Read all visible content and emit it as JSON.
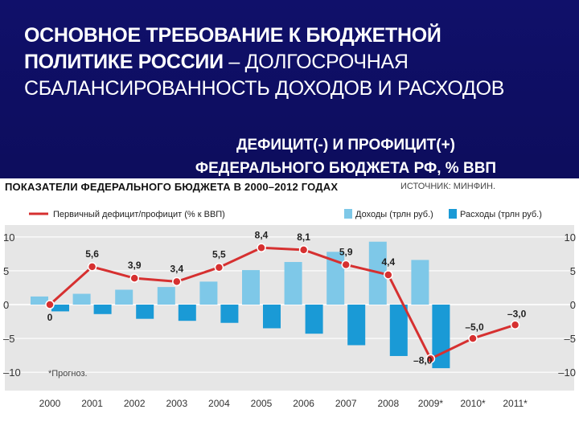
{
  "slide": {
    "title_bold": "ОСНОВНОЕ ТРЕБОВАНИЕ К БЮДЖЕТНОЙ ПОЛИТИКЕ РОССИИ",
    "title_rest": " – ДОЛГОСРОЧНАЯ СБАЛАНСИРОВАННОСТЬ ДОХОДОВ И РАСХОДОВ",
    "subtitle_line1": "ДЕФИЦИТ(-) И ПРОФИЦИТ(+)",
    "subtitle_line2": "ФЕДЕРАЛЬНОГО БЮДЖЕТА РФ, % ВВП"
  },
  "panel": {
    "section_title": "ПОКАЗАТЕЛИ ФЕДЕРАЛЬНОГО БЮДЖЕТА В 2000–2012 ГОДАХ",
    "source": "ИСТОЧНИК: МИНФИН.",
    "footnote": "*Прогноз."
  },
  "chart_data": {
    "type": "bar",
    "categories": [
      "2000",
      "2001",
      "2002",
      "2003",
      "2004",
      "2005",
      "2006",
      "2007",
      "2008",
      "2009*",
      "2010*",
      "2011*"
    ],
    "series": [
      {
        "name": "Доходы (трлн руб.)",
        "type": "bar",
        "color": "#7ec8e8",
        "values": [
          1.2,
          1.6,
          2.2,
          2.6,
          3.4,
          5.1,
          6.3,
          7.8,
          9.3,
          6.6,
          null,
          null
        ]
      },
      {
        "name": "Расходы (трлн руб.)",
        "type": "bar",
        "color": "#1a9ad6",
        "values": [
          -1.0,
          -1.4,
          -2.1,
          -2.4,
          -2.7,
          -3.5,
          -4.3,
          -6.0,
          -7.6,
          -9.4,
          null,
          null
        ]
      },
      {
        "name": "Первичный дефицит/профицит (% к ВВП)",
        "type": "line",
        "color": "#d63030",
        "values": [
          0,
          5.6,
          3.9,
          3.4,
          5.5,
          8.4,
          8.1,
          5.9,
          4.4,
          -8.0,
          -5.0,
          -3.0
        ],
        "labels": [
          "0",
          "5,6",
          "3,9",
          "3,4",
          "5,5",
          "8,4",
          "8,1",
          "5,9",
          "4,4",
          "–8,0",
          "–5,0",
          "–3,0"
        ]
      }
    ],
    "yticks": [
      "10",
      "5",
      "0",
      "–5",
      "–10"
    ],
    "ytick_values": [
      10,
      5,
      0,
      -5,
      -10
    ],
    "ylim": [
      -12,
      12
    ],
    "grid": true,
    "legend": "top"
  }
}
